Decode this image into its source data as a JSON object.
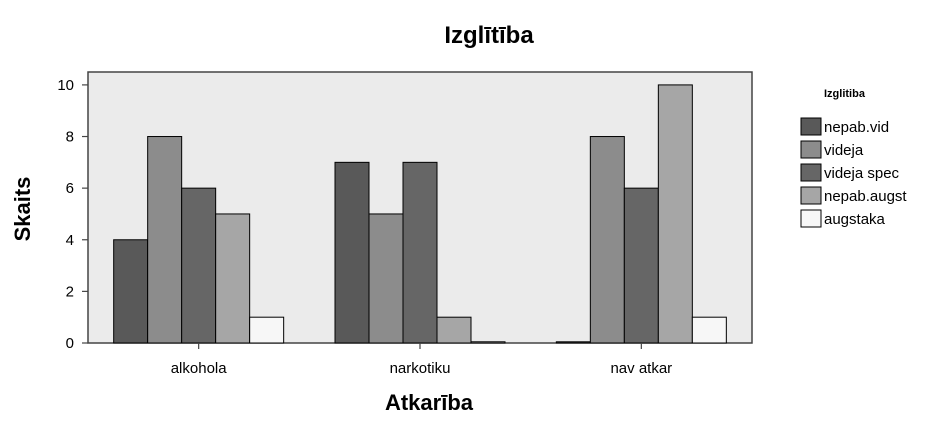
{
  "chart_data": {
    "type": "bar",
    "title": "Izglītība",
    "xlabel": "Atkarība",
    "ylabel": "Skaits",
    "categories": [
      "alkohola",
      "narkotiku",
      "nav atkar"
    ],
    "series": [
      {
        "name": "nepab.vid",
        "values": [
          4,
          7,
          0
        ],
        "color": "#595959"
      },
      {
        "name": "videja",
        "values": [
          8,
          5,
          8
        ],
        "color": "#8c8c8c"
      },
      {
        "name": "videja spec",
        "values": [
          6,
          7,
          6
        ],
        "color": "#666666"
      },
      {
        "name": "nepab.augst",
        "values": [
          5,
          1,
          10
        ],
        "color": "#a6a6a6"
      },
      {
        "name": "augstaka",
        "values": [
          1,
          0,
          1
        ],
        "color": "#f7f7f7"
      }
    ],
    "ylim": [
      0,
      10.5
    ],
    "yticks": [
      0,
      2,
      4,
      6,
      8,
      10
    ],
    "legend": {
      "title": "Izglitiba",
      "position": "right"
    },
    "plot_background": "#ebebeb",
    "grid": false
  }
}
